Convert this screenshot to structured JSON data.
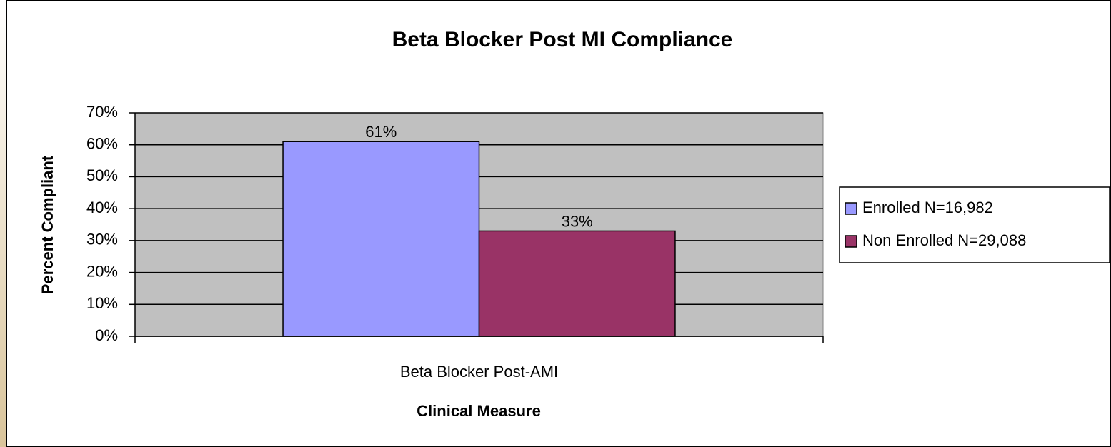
{
  "chart_data": {
    "type": "bar",
    "title": "Beta Blocker Post MI Compliance",
    "xlabel": "Clinical Measure",
    "ylabel": "Percent Compliant",
    "categories": [
      "Beta Blocker Post-AMI"
    ],
    "series": [
      {
        "name": "Enrolled N=16,982",
        "color": "#9999ff",
        "values": [
          61
        ],
        "value_labels": [
          "61%"
        ]
      },
      {
        "name": "Non Enrolled N=29,088",
        "color": "#993366",
        "values": [
          33
        ],
        "value_labels": [
          "33%"
        ]
      }
    ],
    "ylim": [
      0,
      70
    ],
    "yticks": [
      {
        "value": 0,
        "label": "0%"
      },
      {
        "value": 10,
        "label": "10%"
      },
      {
        "value": 20,
        "label": "20%"
      },
      {
        "value": 30,
        "label": "30%"
      },
      {
        "value": 40,
        "label": "40%"
      },
      {
        "value": 50,
        "label": "50%"
      },
      {
        "value": 60,
        "label": "60%"
      },
      {
        "value": 70,
        "label": "70%"
      }
    ],
    "grid": true,
    "legend": "right"
  }
}
